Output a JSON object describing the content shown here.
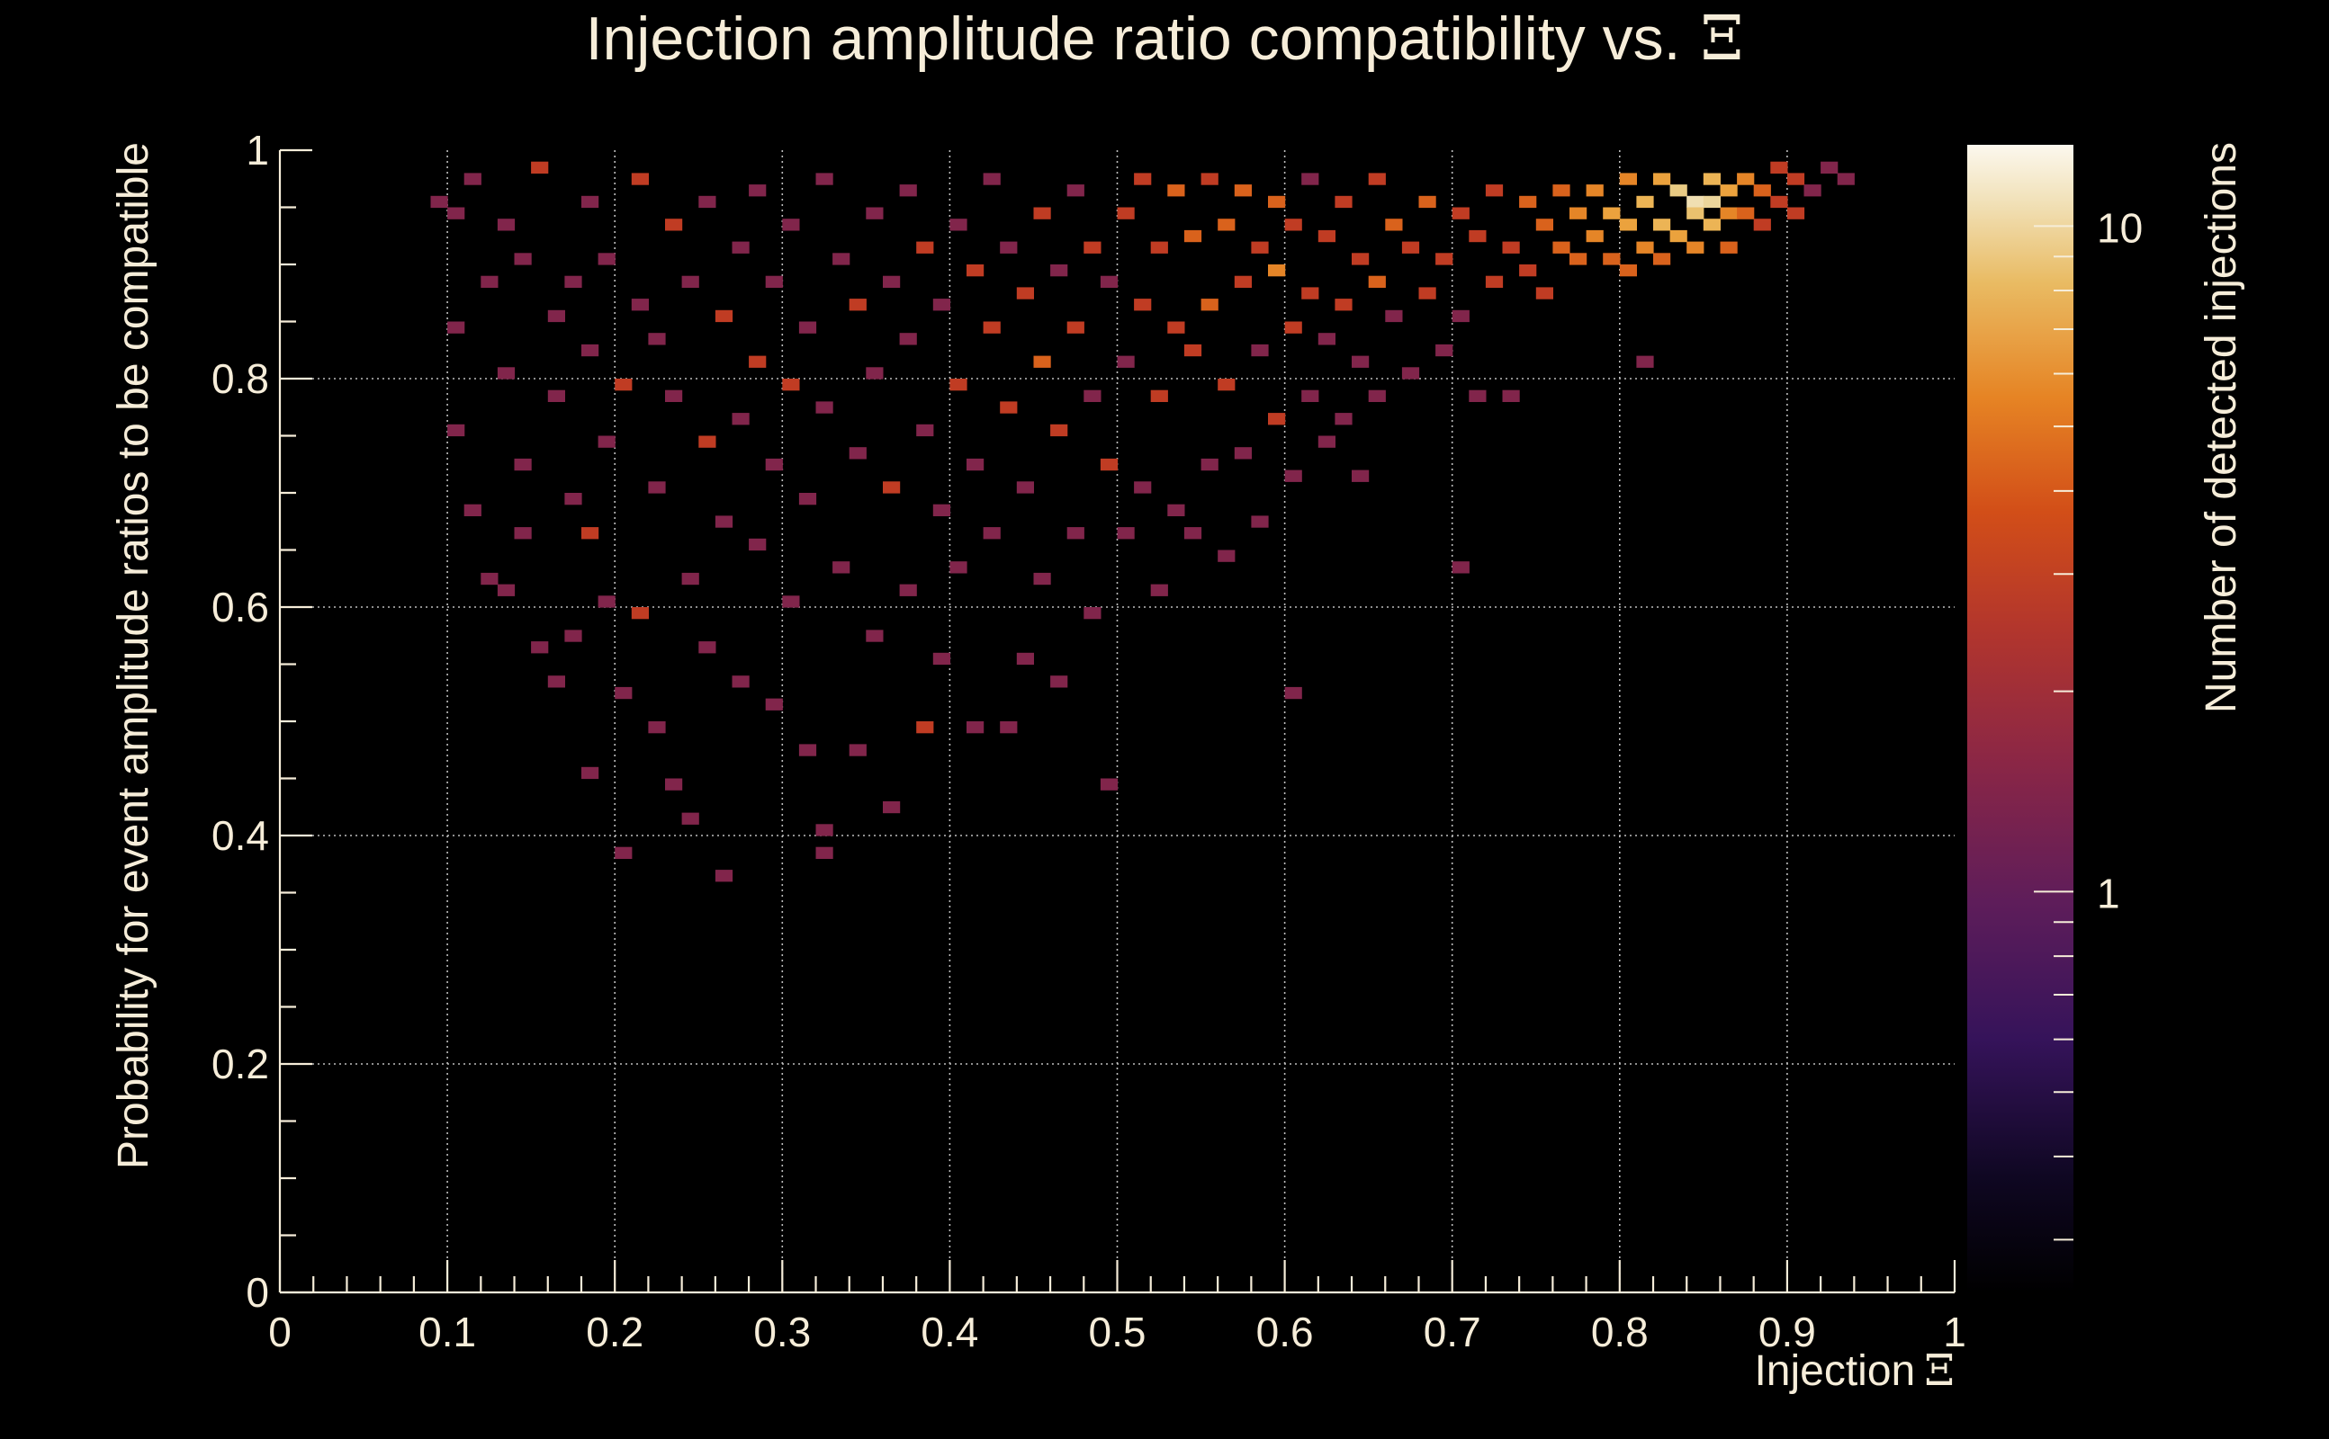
{
  "chart_data": {
    "type": "heatmap",
    "title": "Injection amplitude ratio compatibility vs.",
    "title_symbol": "Ξ",
    "xlabel": "Injection",
    "xlabel_symbol": "Ξ",
    "ylabel": "Probability for event amplitude ratios to be compatible",
    "colorbar_label": "Number of detected injections",
    "xlim": [
      0,
      1
    ],
    "ylim": [
      0,
      1
    ],
    "x_ticks": [
      "0",
      "0.1",
      "0.2",
      "0.3",
      "0.4",
      "0.5",
      "0.6",
      "0.7",
      "0.8",
      "0.9",
      "1"
    ],
    "y_ticks": [
      "0",
      "0.2",
      "0.4",
      "0.6",
      "0.8",
      "1"
    ],
    "colorbar_ticks": [
      "1",
      "10"
    ],
    "colorbar_scale": "log",
    "colorbar_range": [
      0.25,
      13
    ],
    "grid": true,
    "background": "#000000",
    "colormap": [
      "#000000",
      "#1a0d3a",
      "#4a1a5e",
      "#7a2350",
      "#a8302f",
      "#c8401f",
      "#e2731a",
      "#edac44",
      "#e8cf8c",
      "#fcf7ea"
    ],
    "bins": {
      "x_width": 0.01,
      "y_width": 0.01
    },
    "cells": [
      [
        0.09,
        0.95,
        1
      ],
      [
        0.1,
        0.94,
        1
      ],
      [
        0.1,
        0.75,
        1
      ],
      [
        0.1,
        0.84,
        1
      ],
      [
        0.11,
        0.97,
        1
      ],
      [
        0.11,
        0.68,
        1
      ],
      [
        0.12,
        0.88,
        1
      ],
      [
        0.12,
        0.62,
        1
      ],
      [
        0.13,
        0.93,
        1
      ],
      [
        0.13,
        0.8,
        1
      ],
      [
        0.13,
        0.61,
        1
      ],
      [
        0.14,
        0.9,
        1
      ],
      [
        0.14,
        0.72,
        1
      ],
      [
        0.14,
        0.66,
        1
      ],
      [
        0.15,
        0.98,
        2
      ],
      [
        0.15,
        0.56,
        1
      ],
      [
        0.16,
        0.85,
        1
      ],
      [
        0.16,
        0.78,
        1
      ],
      [
        0.16,
        0.53,
        1
      ],
      [
        0.17,
        0.88,
        1
      ],
      [
        0.17,
        0.69,
        1
      ],
      [
        0.17,
        0.57,
        1
      ],
      [
        0.18,
        0.95,
        1
      ],
      [
        0.18,
        0.82,
        1
      ],
      [
        0.18,
        0.66,
        2
      ],
      [
        0.18,
        0.45,
        1
      ],
      [
        0.19,
        0.9,
        1
      ],
      [
        0.19,
        0.74,
        1
      ],
      [
        0.19,
        0.6,
        1
      ],
      [
        0.2,
        0.79,
        2
      ],
      [
        0.2,
        0.52,
        1
      ],
      [
        0.2,
        0.38,
        1
      ],
      [
        0.21,
        0.97,
        2
      ],
      [
        0.21,
        0.86,
        1
      ],
      [
        0.21,
        0.59,
        2
      ],
      [
        0.22,
        0.83,
        1
      ],
      [
        0.22,
        0.7,
        1
      ],
      [
        0.22,
        0.49,
        1
      ],
      [
        0.23,
        0.93,
        2
      ],
      [
        0.23,
        0.78,
        1
      ],
      [
        0.23,
        0.44,
        1
      ],
      [
        0.24,
        0.88,
        1
      ],
      [
        0.24,
        0.62,
        1
      ],
      [
        0.24,
        0.41,
        1
      ],
      [
        0.25,
        0.95,
        1
      ],
      [
        0.25,
        0.74,
        2
      ],
      [
        0.25,
        0.56,
        1
      ],
      [
        0.26,
        0.85,
        2
      ],
      [
        0.26,
        0.67,
        1
      ],
      [
        0.26,
        0.36,
        1
      ],
      [
        0.27,
        0.91,
        1
      ],
      [
        0.27,
        0.76,
        1
      ],
      [
        0.27,
        0.53,
        1
      ],
      [
        0.28,
        0.96,
        1
      ],
      [
        0.28,
        0.81,
        2
      ],
      [
        0.28,
        0.65,
        1
      ],
      [
        0.29,
        0.88,
        1
      ],
      [
        0.29,
        0.72,
        1
      ],
      [
        0.29,
        0.51,
        1
      ],
      [
        0.3,
        0.93,
        1
      ],
      [
        0.3,
        0.79,
        2
      ],
      [
        0.3,
        0.6,
        1
      ],
      [
        0.31,
        0.84,
        1
      ],
      [
        0.31,
        0.69,
        1
      ],
      [
        0.31,
        0.47,
        1
      ],
      [
        0.32,
        0.97,
        1
      ],
      [
        0.32,
        0.77,
        1
      ],
      [
        0.32,
        0.4,
        1
      ],
      [
        0.32,
        0.38,
        1
      ],
      [
        0.33,
        0.9,
        1
      ],
      [
        0.33,
        0.63,
        1
      ],
      [
        0.34,
        0.86,
        2
      ],
      [
        0.34,
        0.73,
        1
      ],
      [
        0.34,
        0.47,
        1
      ],
      [
        0.35,
        0.94,
        1
      ],
      [
        0.35,
        0.8,
        1
      ],
      [
        0.35,
        0.57,
        1
      ],
      [
        0.36,
        0.88,
        1
      ],
      [
        0.36,
        0.7,
        2
      ],
      [
        0.36,
        0.42,
        1
      ],
      [
        0.37,
        0.96,
        1
      ],
      [
        0.37,
        0.83,
        1
      ],
      [
        0.37,
        0.61,
        1
      ],
      [
        0.38,
        0.91,
        2
      ],
      [
        0.38,
        0.75,
        1
      ],
      [
        0.38,
        0.49,
        2
      ],
      [
        0.39,
        0.86,
        1
      ],
      [
        0.39,
        0.68,
        1
      ],
      [
        0.39,
        0.55,
        1
      ],
      [
        0.4,
        0.93,
        1
      ],
      [
        0.4,
        0.79,
        2
      ],
      [
        0.4,
        0.63,
        1
      ],
      [
        0.41,
        0.89,
        2
      ],
      [
        0.41,
        0.72,
        1
      ],
      [
        0.41,
        0.49,
        1
      ],
      [
        0.42,
        0.97,
        1
      ],
      [
        0.42,
        0.84,
        2
      ],
      [
        0.42,
        0.66,
        1
      ],
      [
        0.43,
        0.91,
        1
      ],
      [
        0.43,
        0.77,
        2
      ],
      [
        0.43,
        0.49,
        1
      ],
      [
        0.44,
        0.87,
        2
      ],
      [
        0.44,
        0.7,
        1
      ],
      [
        0.44,
        0.55,
        1
      ],
      [
        0.45,
        0.94,
        2
      ],
      [
        0.45,
        0.81,
        3
      ],
      [
        0.45,
        0.62,
        1
      ],
      [
        0.46,
        0.89,
        1
      ],
      [
        0.46,
        0.75,
        2
      ],
      [
        0.46,
        0.53,
        1
      ],
      [
        0.47,
        0.96,
        1
      ],
      [
        0.47,
        0.84,
        2
      ],
      [
        0.47,
        0.66,
        1
      ],
      [
        0.48,
        0.91,
        2
      ],
      [
        0.48,
        0.78,
        1
      ],
      [
        0.48,
        0.59,
        1
      ],
      [
        0.49,
        0.88,
        1
      ],
      [
        0.49,
        0.72,
        2
      ],
      [
        0.49,
        0.44,
        1
      ],
      [
        0.5,
        0.94,
        2
      ],
      [
        0.5,
        0.81,
        1
      ],
      [
        0.5,
        0.66,
        1
      ],
      [
        0.51,
        0.97,
        2
      ],
      [
        0.51,
        0.86,
        2
      ],
      [
        0.51,
        0.7,
        1
      ],
      [
        0.52,
        0.91,
        2
      ],
      [
        0.52,
        0.78,
        2
      ],
      [
        0.52,
        0.61,
        1
      ],
      [
        0.53,
        0.96,
        3
      ],
      [
        0.53,
        0.84,
        2
      ],
      [
        0.53,
        0.68,
        1
      ],
      [
        0.54,
        0.92,
        3
      ],
      [
        0.54,
        0.82,
        2
      ],
      [
        0.54,
        0.66,
        1
      ],
      [
        0.55,
        0.97,
        2
      ],
      [
        0.55,
        0.86,
        3
      ],
      [
        0.55,
        0.72,
        1
      ],
      [
        0.56,
        0.93,
        3
      ],
      [
        0.56,
        0.79,
        2
      ],
      [
        0.56,
        0.64,
        1
      ],
      [
        0.57,
        0.96,
        3
      ],
      [
        0.57,
        0.88,
        2
      ],
      [
        0.57,
        0.73,
        1
      ],
      [
        0.58,
        0.91,
        2
      ],
      [
        0.58,
        0.82,
        1
      ],
      [
        0.58,
        0.67,
        1
      ],
      [
        0.59,
        0.95,
        3
      ],
      [
        0.59,
        0.89,
        4
      ],
      [
        0.59,
        0.76,
        2
      ],
      [
        0.6,
        0.93,
        2
      ],
      [
        0.6,
        0.84,
        2
      ],
      [
        0.6,
        0.71,
        1
      ],
      [
        0.6,
        0.52,
        1
      ],
      [
        0.61,
        0.97,
        1
      ],
      [
        0.61,
        0.87,
        2
      ],
      [
        0.61,
        0.78,
        1
      ],
      [
        0.62,
        0.92,
        2
      ],
      [
        0.62,
        0.83,
        1
      ],
      [
        0.62,
        0.74,
        1
      ],
      [
        0.63,
        0.95,
        2
      ],
      [
        0.63,
        0.86,
        2
      ],
      [
        0.63,
        0.76,
        1
      ],
      [
        0.64,
        0.9,
        2
      ],
      [
        0.64,
        0.81,
        1
      ],
      [
        0.64,
        0.71,
        1
      ],
      [
        0.65,
        0.97,
        2
      ],
      [
        0.65,
        0.88,
        3
      ],
      [
        0.65,
        0.78,
        1
      ],
      [
        0.66,
        0.93,
        3
      ],
      [
        0.66,
        0.85,
        1
      ],
      [
        0.67,
        0.91,
        2
      ],
      [
        0.67,
        0.8,
        1
      ],
      [
        0.68,
        0.95,
        3
      ],
      [
        0.68,
        0.87,
        2
      ],
      [
        0.69,
        0.9,
        2
      ],
      [
        0.69,
        0.82,
        1
      ],
      [
        0.7,
        0.94,
        2
      ],
      [
        0.7,
        0.85,
        1
      ],
      [
        0.7,
        0.63,
        1
      ],
      [
        0.71,
        0.92,
        2
      ],
      [
        0.71,
        0.78,
        1
      ],
      [
        0.72,
        0.96,
        2
      ],
      [
        0.72,
        0.88,
        2
      ],
      [
        0.73,
        0.91,
        2
      ],
      [
        0.73,
        0.78,
        1
      ],
      [
        0.74,
        0.95,
        3
      ],
      [
        0.74,
        0.89,
        2
      ],
      [
        0.75,
        0.93,
        3
      ],
      [
        0.75,
        0.87,
        2
      ],
      [
        0.76,
        0.96,
        3
      ],
      [
        0.76,
        0.91,
        3
      ],
      [
        0.77,
        0.94,
        4
      ],
      [
        0.77,
        0.9,
        3
      ],
      [
        0.78,
        0.96,
        4
      ],
      [
        0.78,
        0.92,
        4
      ],
      [
        0.79,
        0.94,
        5
      ],
      [
        0.79,
        0.9,
        3
      ],
      [
        0.8,
        0.97,
        4
      ],
      [
        0.8,
        0.93,
        5
      ],
      [
        0.8,
        0.89,
        3
      ],
      [
        0.81,
        0.95,
        6
      ],
      [
        0.81,
        0.91,
        4
      ],
      [
        0.81,
        0.81,
        1
      ],
      [
        0.82,
        0.97,
        5
      ],
      [
        0.82,
        0.93,
        6
      ],
      [
        0.82,
        0.9,
        3
      ],
      [
        0.83,
        0.96,
        8
      ],
      [
        0.83,
        0.92,
        5
      ],
      [
        0.84,
        0.95,
        10
      ],
      [
        0.84,
        0.94,
        7
      ],
      [
        0.84,
        0.91,
        4
      ],
      [
        0.85,
        0.97,
        6
      ],
      [
        0.85,
        0.95,
        9
      ],
      [
        0.85,
        0.93,
        6
      ],
      [
        0.86,
        0.96,
        5
      ],
      [
        0.86,
        0.94,
        4
      ],
      [
        0.86,
        0.91,
        3
      ],
      [
        0.87,
        0.97,
        4
      ],
      [
        0.87,
        0.94,
        3
      ],
      [
        0.88,
        0.96,
        3
      ],
      [
        0.88,
        0.93,
        2
      ],
      [
        0.89,
        0.98,
        2
      ],
      [
        0.89,
        0.95,
        2
      ],
      [
        0.9,
        0.97,
        2
      ],
      [
        0.9,
        0.94,
        2
      ],
      [
        0.91,
        0.96,
        1
      ],
      [
        0.92,
        0.98,
        1
      ],
      [
        0.93,
        0.97,
        1
      ]
    ]
  }
}
